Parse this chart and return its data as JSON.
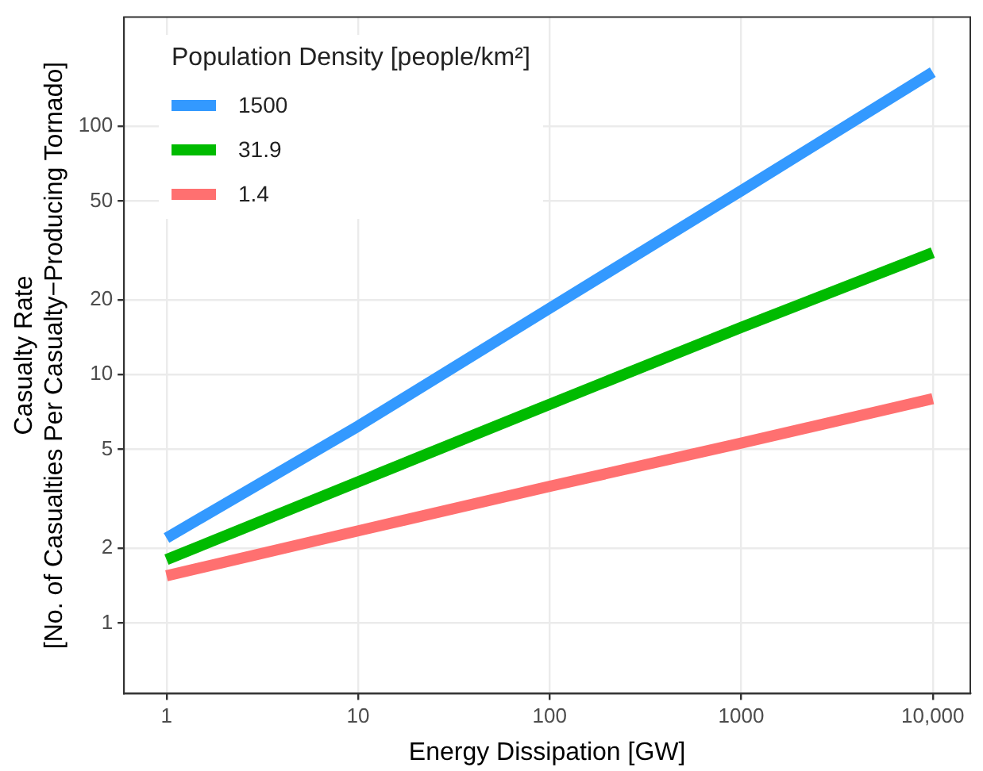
{
  "chart_data": {
    "type": "line",
    "xlabel": "Energy Dissipation [GW]",
    "ylabel": "Casualty Rate\n[No. of Casualties Per Casualty−Producing Tornado]",
    "legend_title": "Population Density [people/km²]",
    "legend": "top left",
    "log": "xy",
    "grid": true,
    "marker": "none",
    "line_style": "solid",
    "x": [
      1,
      10,
      100,
      1000,
      10000
    ],
    "xlim": [
      0.64,
      15700
    ],
    "xticks": [
      1,
      10,
      100,
      1000,
      {
        "value": 10000,
        "label": "10,000"
      }
    ],
    "ylim": [
      0.52,
      275
    ],
    "yticks": [
      1,
      2,
      5,
      10,
      20,
      50,
      100
    ],
    "series": [
      {
        "name": "1500",
        "color": "#3399ff",
        "values": [
          2.2,
          6.2,
          18.5,
          55,
          165
        ]
      },
      {
        "name": "31.9",
        "color": "#00bb00",
        "values": [
          1.8,
          3.7,
          7.6,
          15.5,
          31
        ]
      },
      {
        "name": "1.4",
        "color": "#ff7070",
        "values": [
          1.55,
          2.35,
          3.55,
          5.3,
          8.0
        ]
      }
    ]
  }
}
